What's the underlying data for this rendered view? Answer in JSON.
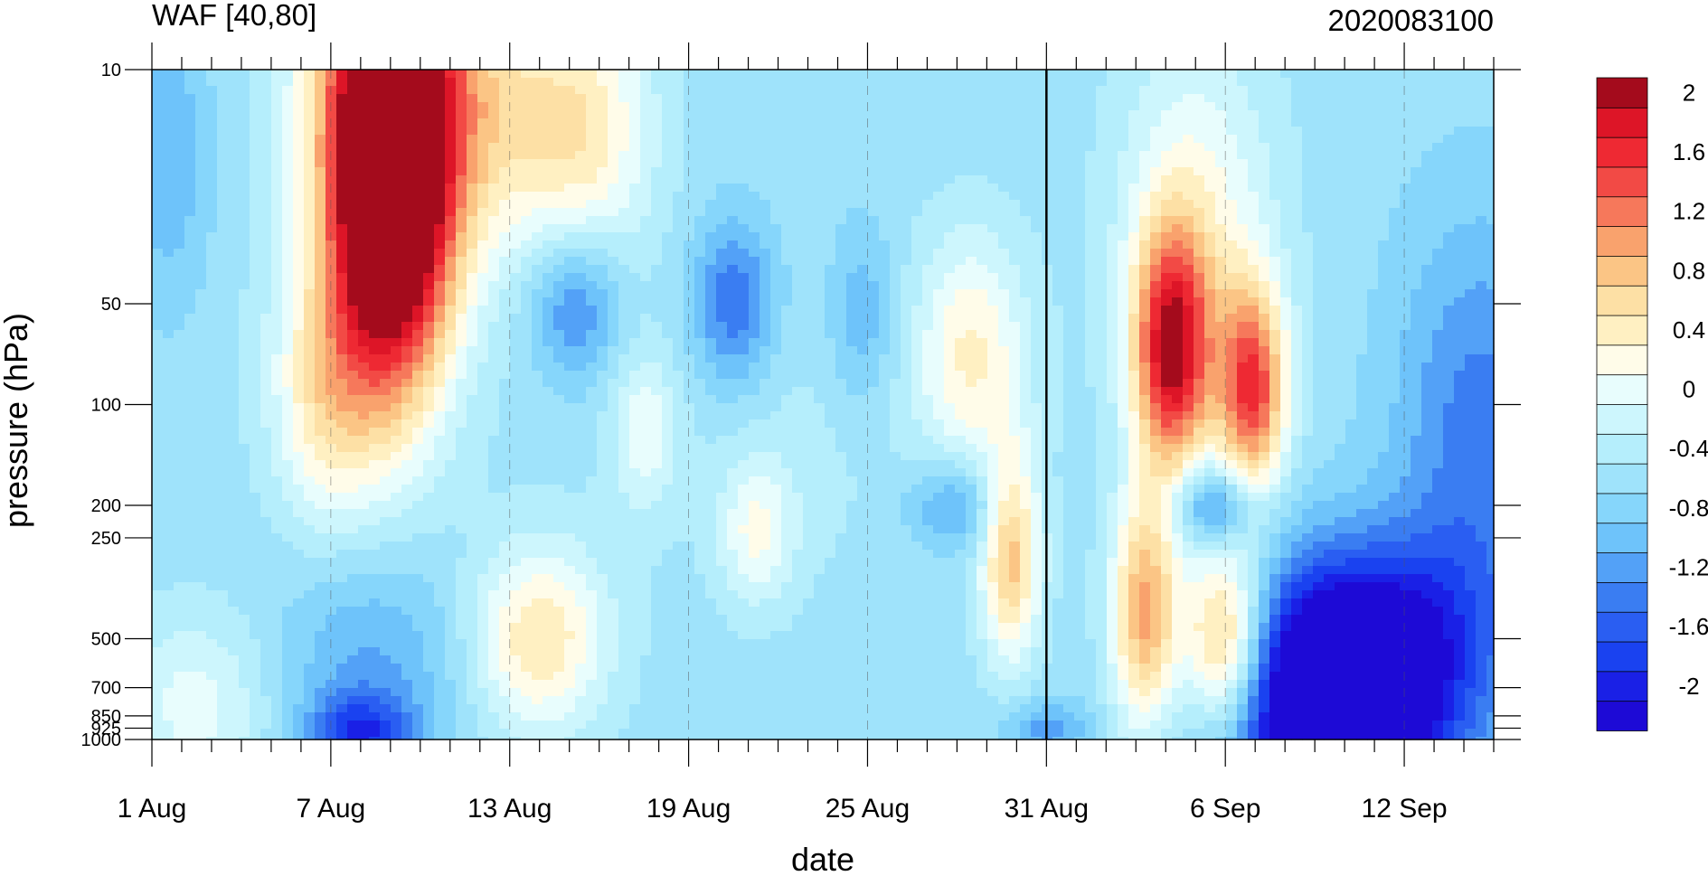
{
  "chart_data": {
    "type": "heatmap",
    "title": "WAF [40,80]",
    "subtitle": "2020083100",
    "xlabel": "date",
    "ylabel": "pressure (hPa)",
    "y_scale": "log",
    "y_reversed": true,
    "x_range_days": [
      1,
      46
    ],
    "y_range_hpa": [
      10,
      1000
    ],
    "x_ticks": [
      {
        "day": 1,
        "label": "1 Aug"
      },
      {
        "day": 7,
        "label": "7 Aug"
      },
      {
        "day": 13,
        "label": "13 Aug"
      },
      {
        "day": 19,
        "label": "19 Aug"
      },
      {
        "day": 25,
        "label": "25 Aug"
      },
      {
        "day": 31,
        "label": "31 Aug"
      },
      {
        "day": 37,
        "label": "6 Sep"
      },
      {
        "day": 43,
        "label": "12 Sep"
      }
    ],
    "y_ticks": [
      {
        "p": 10,
        "label": "10"
      },
      {
        "p": 50,
        "label": "50"
      },
      {
        "p": 100,
        "label": "100"
      },
      {
        "p": 200,
        "label": "200"
      },
      {
        "p": 250,
        "label": "250"
      },
      {
        "p": 500,
        "label": "500"
      },
      {
        "p": 700,
        "label": "700"
      },
      {
        "p": 850,
        "label": "850"
      },
      {
        "p": 925,
        "label": "925"
      },
      {
        "p": 1000,
        "label": "1000"
      }
    ],
    "vertical_marker_day": 31,
    "colorbar": {
      "levels": [
        -2.2,
        -2.0,
        -1.8,
        -1.6,
        -1.4,
        -1.2,
        -1.0,
        -0.8,
        -0.6,
        -0.4,
        -0.2,
        0,
        0.2,
        0.4,
        0.6,
        0.8,
        1.0,
        1.2,
        1.4,
        1.6,
        1.8,
        2.0,
        2.2
      ],
      "colors": [
        "#1d0ad6",
        "#1a20e6",
        "#1a42f0",
        "#2a5ef2",
        "#3a7df2",
        "#53a1f7",
        "#6ec3fa",
        "#86d6fb",
        "#9fe3fb",
        "#b5eefc",
        "#cdf6fd",
        "#e8fdfd",
        "#fffce9",
        "#fff0c2",
        "#fde0a5",
        "#fbc585",
        "#f9a26d",
        "#f6785b",
        "#f24a45",
        "#ee2933",
        "#dd1527",
        "#a40b1c"
      ],
      "tick_labels": [
        {
          "v": 2,
          "label": "2"
        },
        {
          "v": 1.6,
          "label": "1.6"
        },
        {
          "v": 1.2,
          "label": "1.2"
        },
        {
          "v": 0.8,
          "label": "0.8"
        },
        {
          "v": 0.4,
          "label": "0.4"
        },
        {
          "v": 0,
          "label": "0"
        },
        {
          "v": -0.4,
          "label": "-0.4"
        },
        {
          "v": -0.8,
          "label": "-0.8"
        },
        {
          "v": -1.2,
          "label": "-1.2"
        },
        {
          "v": -1.6,
          "label": "-1.6"
        },
        {
          "v": -2,
          "label": "-2"
        }
      ]
    },
    "background_value": -0.5,
    "features": [
      {
        "day": 9.0,
        "p": 20,
        "sd": 1.4,
        "sp": 0.45,
        "amp": 3.6
      },
      {
        "day": 9.0,
        "p": 10,
        "sd": 2.2,
        "sp": 0.55,
        "amp": 1.2
      },
      {
        "day": 6.8,
        "p": 95,
        "sd": 1.3,
        "sp": 0.28,
        "amp": 0.9
      },
      {
        "day": 12.5,
        "p": 13,
        "sd": 1.6,
        "sp": 0.3,
        "amp": 0.7
      },
      {
        "day": 15.5,
        "p": 15,
        "sd": 1.6,
        "sp": 0.3,
        "amp": 1.0
      },
      {
        "day": 15.2,
        "p": 50,
        "sd": 1.1,
        "sp": 0.16,
        "amp": -0.85
      },
      {
        "day": 20.5,
        "p": 50,
        "sd": 1.0,
        "sp": 0.18,
        "amp": -0.9
      },
      {
        "day": 24.8,
        "p": 55,
        "sd": 0.8,
        "sp": 0.2,
        "amp": -0.5
      },
      {
        "day": 17.5,
        "p": 120,
        "sd": 0.8,
        "sp": 0.17,
        "amp": 0.6
      },
      {
        "day": 14.0,
        "p": 500,
        "sd": 1.6,
        "sp": 0.2,
        "amp": 1.1
      },
      {
        "day": 21.3,
        "p": 240,
        "sd": 0.9,
        "sp": 0.15,
        "amp": 0.7
      },
      {
        "day": 28.5,
        "p": 70,
        "sd": 1.3,
        "sp": 0.25,
        "amp": 0.9
      },
      {
        "day": 28.0,
        "p": 200,
        "sd": 1.2,
        "sp": 0.1,
        "amp": -0.7
      },
      {
        "day": 29.8,
        "p": 280,
        "sd": 0.7,
        "sp": 0.22,
        "amp": 1.4
      },
      {
        "day": 35.2,
        "p": 70,
        "sd": 0.9,
        "sp": 0.25,
        "amp": 2.3
      },
      {
        "day": 37.9,
        "p": 90,
        "sd": 0.8,
        "sp": 0.22,
        "amp": 2.0
      },
      {
        "day": 36.0,
        "p": 30,
        "sd": 1.8,
        "sp": 0.4,
        "amp": 0.8
      },
      {
        "day": 36.6,
        "p": 200,
        "sd": 0.9,
        "sp": 0.08,
        "amp": -1.0
      },
      {
        "day": 34.3,
        "p": 420,
        "sd": 0.8,
        "sp": 0.25,
        "amp": 1.6
      },
      {
        "day": 37.0,
        "p": 520,
        "sd": 1.0,
        "sp": 0.2,
        "amp": 1.8
      },
      {
        "day": 40.8,
        "p": 850,
        "sd": 2.6,
        "sp": 0.25,
        "amp": -2.5
      },
      {
        "day": 42.0,
        "p": 450,
        "sd": 3.0,
        "sp": 0.22,
        "amp": -0.9
      },
      {
        "day": 45.5,
        "p": 120,
        "sd": 2.0,
        "sp": 0.45,
        "amp": -0.8
      },
      {
        "day": 8.3,
        "p": 600,
        "sd": 2.2,
        "sp": 0.25,
        "amp": -0.55
      },
      {
        "day": 8.0,
        "p": 950,
        "sd": 1.2,
        "sp": 0.08,
        "amp": -1.0
      },
      {
        "day": 1.5,
        "p": 18,
        "sd": 1.0,
        "sp": 0.3,
        "amp": -0.5
      },
      {
        "day": 2.5,
        "p": 800,
        "sd": 1.8,
        "sp": 0.2,
        "amp": 0.6
      },
      {
        "day": 31.0,
        "p": 930,
        "sd": 1.0,
        "sp": 0.06,
        "amp": -0.6
      },
      {
        "day": 23.0,
        "p": 120,
        "sd": 4.0,
        "sp": 0.35,
        "amp": 0.15
      }
    ]
  }
}
